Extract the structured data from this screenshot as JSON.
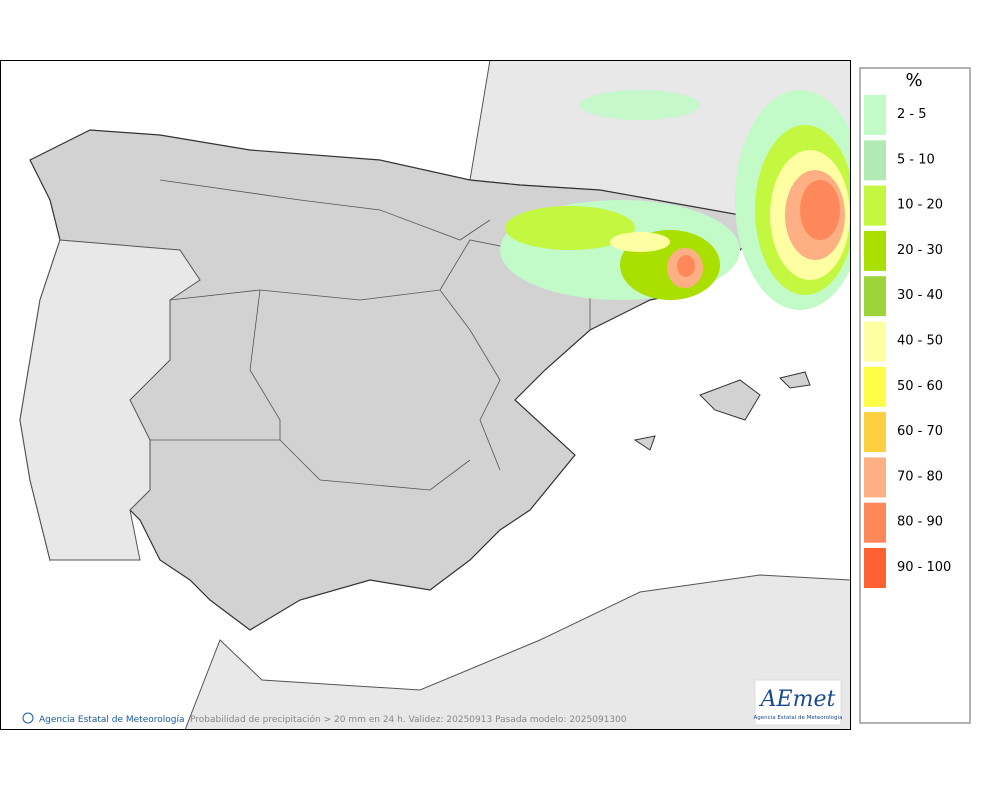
{
  "legend": {
    "title": "%",
    "items": [
      {
        "label": "2 - 5",
        "color": "#c2fac8"
      },
      {
        "label": "5 - 10",
        "color": "#b2eab4"
      },
      {
        "label": "10 - 20",
        "color": "#c4f840"
      },
      {
        "label": "20 - 30",
        "color": "#aae000"
      },
      {
        "label": "30 - 40",
        "color": "#9cd43a"
      },
      {
        "label": "40 - 50",
        "color": "#fefea2"
      },
      {
        "label": "50 - 60",
        "color": "#fefe44"
      },
      {
        "label": "60 - 70",
        "color": "#fed040"
      },
      {
        "label": "70 - 80",
        "color": "#feb084"
      },
      {
        "label": "80 - 90",
        "color": "#fe885a"
      },
      {
        "label": "90 - 100",
        "color": "#fe6032"
      }
    ]
  },
  "footer": {
    "credit": "Agencia Estatal de Meteorología",
    "caption": "Probabilidad de precipitación > 20 mm en 24 h. Validez: 20250913 Pasada modelo: 2025091300"
  },
  "logo": {
    "name": "AEmet",
    "subtitle": "Agencia Estatal de Meteorología"
  }
}
